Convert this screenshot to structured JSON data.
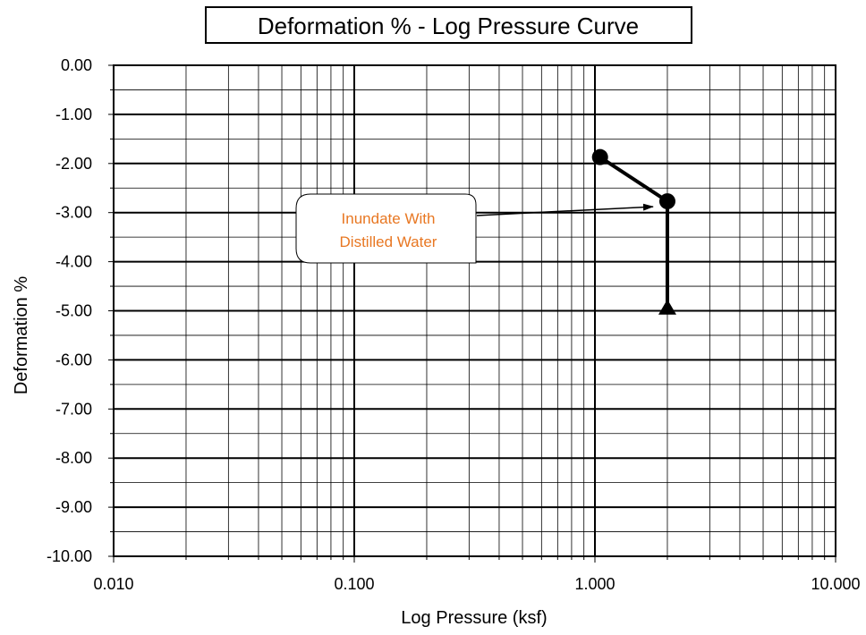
{
  "chart_data": {
    "type": "scatter",
    "title": "Deformation % - Log Pressure Curve",
    "xlabel": "Log Pressure (ksf)",
    "ylabel": "Deformation %",
    "xscale": "log",
    "xlim": [
      0.01,
      10
    ],
    "ylim": [
      -10,
      0
    ],
    "grid": true,
    "x_tick_labels": [
      "0.010",
      "0.100",
      "1.000",
      "10.000"
    ],
    "y_tick_labels": [
      "0.00",
      "-1.00",
      "-2.00",
      "-3.00",
      "-4.00",
      "-5.00",
      "-6.00",
      "-7.00",
      "-8.00",
      "-9.00",
      "-10.00"
    ],
    "series": [
      {
        "marker": "circle",
        "line": true,
        "points": [
          {
            "x": 1.05,
            "y": -1.87
          },
          {
            "x": 2.0,
            "y": -2.77
          }
        ]
      },
      {
        "marker": "triangle",
        "line": true,
        "points": [
          {
            "x": 2.0,
            "y": -2.77
          },
          {
            "x": 2.0,
            "y": -4.95
          }
        ]
      }
    ],
    "annotations": [
      {
        "lines": [
          "Inundate With",
          "Distilled Water"
        ],
        "color": "#e87722",
        "arrow_to": {
          "x": 2.0,
          "y": -2.77
        }
      }
    ],
    "colors": {
      "data": "#000000",
      "annotation_text": "#e87722"
    }
  }
}
